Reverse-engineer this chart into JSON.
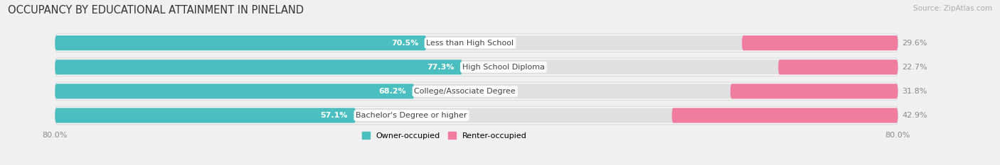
{
  "title": "OCCUPANCY BY EDUCATIONAL ATTAINMENT IN PINELAND",
  "source": "Source: ZipAtlas.com",
  "categories": [
    "Less than High School",
    "High School Diploma",
    "College/Associate Degree",
    "Bachelor's Degree or higher"
  ],
  "owner_values": [
    70.5,
    77.3,
    68.2,
    57.1
  ],
  "renter_values": [
    29.6,
    22.7,
    31.8,
    42.9
  ],
  "owner_color": "#4BBFBF",
  "renter_color": "#F07CA0",
  "axis_label_left": "80.0%",
  "axis_label_right": "80.0%",
  "legend_owner": "Owner-occupied",
  "legend_renter": "Renter-occupied",
  "bg_color": "#f0f0f0",
  "bar_bg_color": "#e0e0e0",
  "row_bg_color": "#f8f8f8",
  "title_fontsize": 10.5,
  "source_fontsize": 7.5,
  "label_fontsize": 8,
  "category_fontsize": 8
}
